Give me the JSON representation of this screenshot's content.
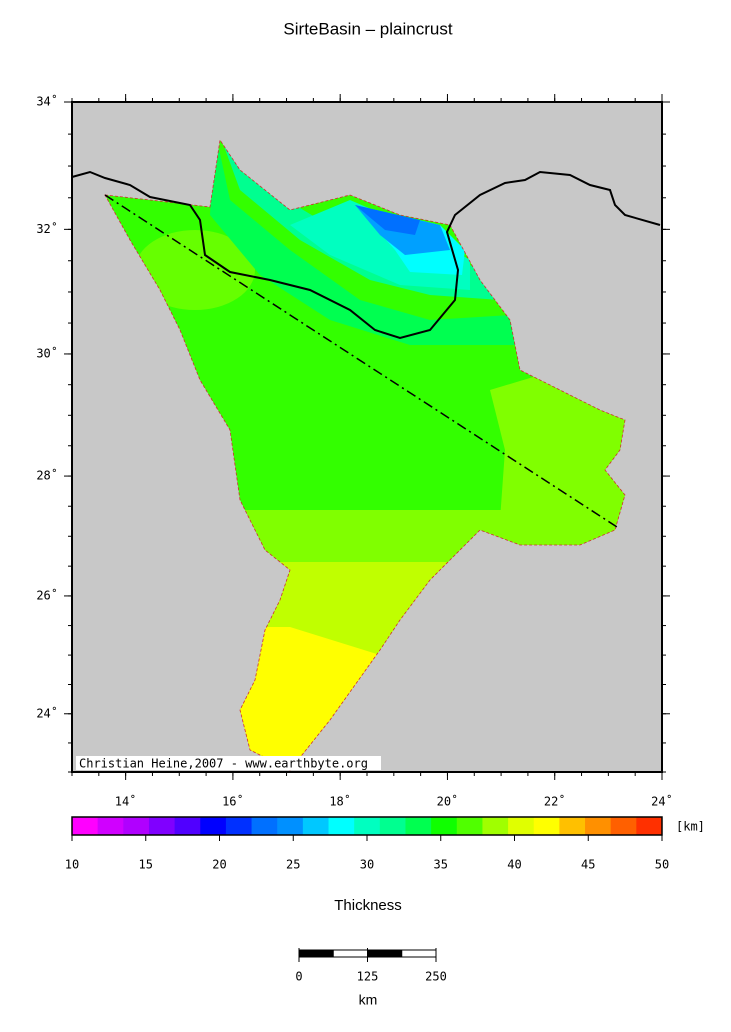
{
  "title": "SirteBasin – plaincrust",
  "map": {
    "xlim": [
      13,
      24
    ],
    "ylim": [
      23,
      34
    ],
    "xticks": [
      {
        "value": 14,
        "label": "14˚"
      },
      {
        "value": 16,
        "label": "16˚"
      },
      {
        "value": 18,
        "label": "18˚"
      },
      {
        "value": 20,
        "label": "20˚"
      },
      {
        "value": 22,
        "label": "22˚"
      },
      {
        "value": 24,
        "label": "24˚"
      }
    ],
    "yticks": [
      {
        "value": 24,
        "label": "24˚"
      },
      {
        "value": 26,
        "label": "26˚"
      },
      {
        "value": 28,
        "label": "28˚"
      },
      {
        "value": 30,
        "label": "30˚"
      },
      {
        "value": 32,
        "label": "32˚"
      },
      {
        "value": 34,
        "label": "34˚"
      }
    ],
    "credit": "Christian Heine,2007 - www.earthbyte.org"
  },
  "colorbar": {
    "range": [
      10,
      50
    ],
    "ticks": [
      10,
      15,
      20,
      25,
      30,
      35,
      40,
      45,
      50
    ],
    "colors": [
      "#ff00ff",
      "#d000ff",
      "#b000ff",
      "#8000ff",
      "#5000ff",
      "#0000ff",
      "#0030ff",
      "#0070ff",
      "#0090ff",
      "#00c8ff",
      "#00ffff",
      "#00ffc0",
      "#00ff90",
      "#00ff50",
      "#10ff00",
      "#50ff00",
      "#a0ff00",
      "#e0ff00",
      "#ffff00",
      "#ffc000",
      "#ff9000",
      "#ff6000",
      "#ff3000"
    ],
    "unit": "[km]",
    "label": "Thickness"
  },
  "scalebar": {
    "range": [
      0,
      250
    ],
    "ticks": [
      0,
      125,
      250
    ],
    "unit": "km"
  }
}
